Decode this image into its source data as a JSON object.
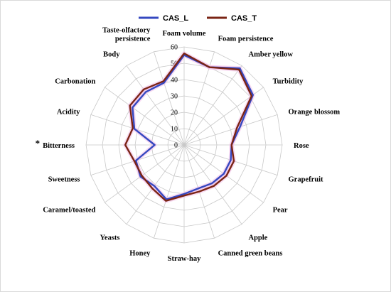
{
  "chart_data": {
    "type": "radar",
    "title": "",
    "axes": [
      "Foam volume",
      "Foam persistence",
      "Amber yellow",
      "Turbidity",
      "Orange blossom",
      "Rose",
      "Grapefruit",
      "Pear",
      "Apple",
      "Canned green beans",
      "Straw-hay",
      "Honey",
      "Yeasts",
      "Caramel/toasted",
      "Sweetness",
      "Bitterness",
      "Acidity",
      "Carbonation",
      "Body",
      "Taste-olfactory persistence"
    ],
    "axis_label_lines": [
      [
        "Foam volume"
      ],
      [
        "Foam persistence"
      ],
      [
        "Amber yellow"
      ],
      [
        "Turbidity"
      ],
      [
        "Orange blossom"
      ],
      [
        "Rose"
      ],
      [
        "Grapefruit"
      ],
      [
        "Pear"
      ],
      [
        "Apple"
      ],
      [
        "Canned green beans"
      ],
      [
        "Straw-hay"
      ],
      [
        "Honey"
      ],
      [
        "Yeasts"
      ],
      [
        "Caramel/toasted"
      ],
      [
        "Sweetness"
      ],
      [
        "Bitterness"
      ],
      [
        "Acidity"
      ],
      [
        "Carbonation"
      ],
      [
        "Body"
      ],
      [
        "Taste-olfactory",
        "persistence"
      ]
    ],
    "radial_ticks": [
      0,
      10,
      20,
      30,
      40,
      50,
      60
    ],
    "rlim": [
      0,
      60
    ],
    "grid": true,
    "legend_position": "top",
    "significance_marker": {
      "axis": "Bitterness",
      "symbol": "*"
    },
    "series": [
      {
        "name": "CAS_L",
        "color": "#3548C0",
        "values": [
          55,
          50,
          58,
          52,
          36,
          29,
          30,
          30,
          29,
          28,
          30,
          35,
          31,
          33,
          31,
          18,
          32,
          39,
          40,
          40
        ]
      },
      {
        "name": "CAS_T",
        "color": "#7A2414",
        "values": [
          56,
          50,
          57,
          51,
          34,
          29,
          32,
          32,
          31,
          30,
          31,
          36,
          33,
          32,
          32,
          36,
          33,
          41,
          42,
          41
        ]
      }
    ],
    "highlight_color": "#F2BFEA"
  }
}
